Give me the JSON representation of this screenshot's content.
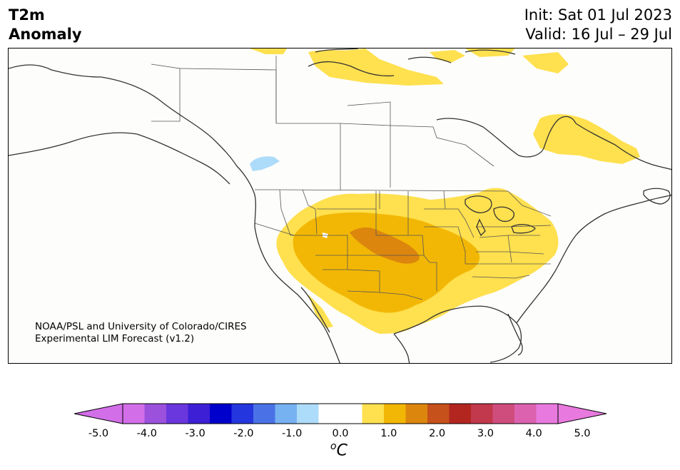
{
  "header": {
    "title_line1": "T2m",
    "title_line2": "Anomaly",
    "init": "Init: Sat 01 Jul 2023",
    "valid": "Valid: 16 Jul – 29 Jul"
  },
  "credit": {
    "line1": "NOAA/PSL and University of Colorado/CIRES",
    "line2": "Experimental LIM Forecast (v1.2)"
  },
  "colorbar": {
    "unit_base": "C",
    "unit_sup": "o",
    "ticks": [
      "-5.0",
      "-4.0",
      "-3.0",
      "-2.0",
      "-1.0",
      "0.0",
      "1.0",
      "2.0",
      "3.0",
      "4.0",
      "5.0"
    ],
    "colors": [
      "#d26ee8",
      "#9b51dc",
      "#6a36de",
      "#3d1fd6",
      "#0000cc",
      "#2436de",
      "#4a72e6",
      "#76b1f2",
      "#addcfa",
      "#ffffff",
      "#ffffff",
      "#ffe04e",
      "#f2b705",
      "#dc860e",
      "#c6511a",
      "#b3261f",
      "#c2384c",
      "#cf4d7c",
      "#dc62b0",
      "#e879de"
    ],
    "extend_low_color": "#d26ee8",
    "extend_high_color": "#e879de"
  },
  "map": {
    "land_color": "#fdfdfb",
    "coast_color": "#333333",
    "anomaly_colors": {
      "light_blue": "#addcfa",
      "plus_0_5_to_1": "#ffe04e",
      "plus_1_to_1_5": "#f2b705",
      "plus_1_5_to_2": "#dc860e"
    }
  }
}
